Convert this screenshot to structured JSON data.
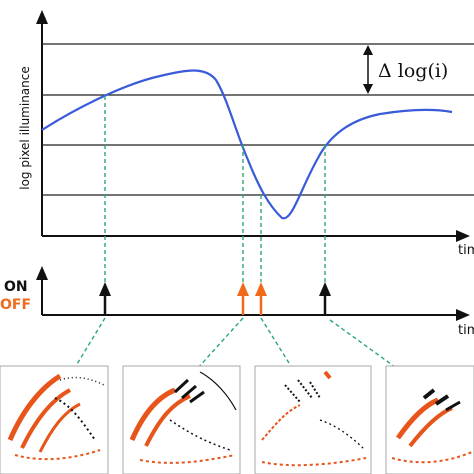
{
  "diagram": {
    "y_axis_label": "log pixel illuminance",
    "time_axis_label_top": "time",
    "time_axis_label_bottom": "time",
    "threshold_label": "Δ log(i)",
    "legend": {
      "on": "ON",
      "off": "OFF"
    },
    "colors": {
      "curve": "#3a5bd9",
      "on_event": "#111111",
      "off_event": "#f06a1c",
      "connector": "#2aa874",
      "grid": "#222222"
    },
    "events": [
      {
        "polarity": "ON",
        "frame": 1
      },
      {
        "polarity": "OFF",
        "frame": 2
      },
      {
        "polarity": "OFF",
        "frame": 3
      },
      {
        "polarity": "ON",
        "frame": 4
      }
    ],
    "thumbnail_count": 4
  }
}
